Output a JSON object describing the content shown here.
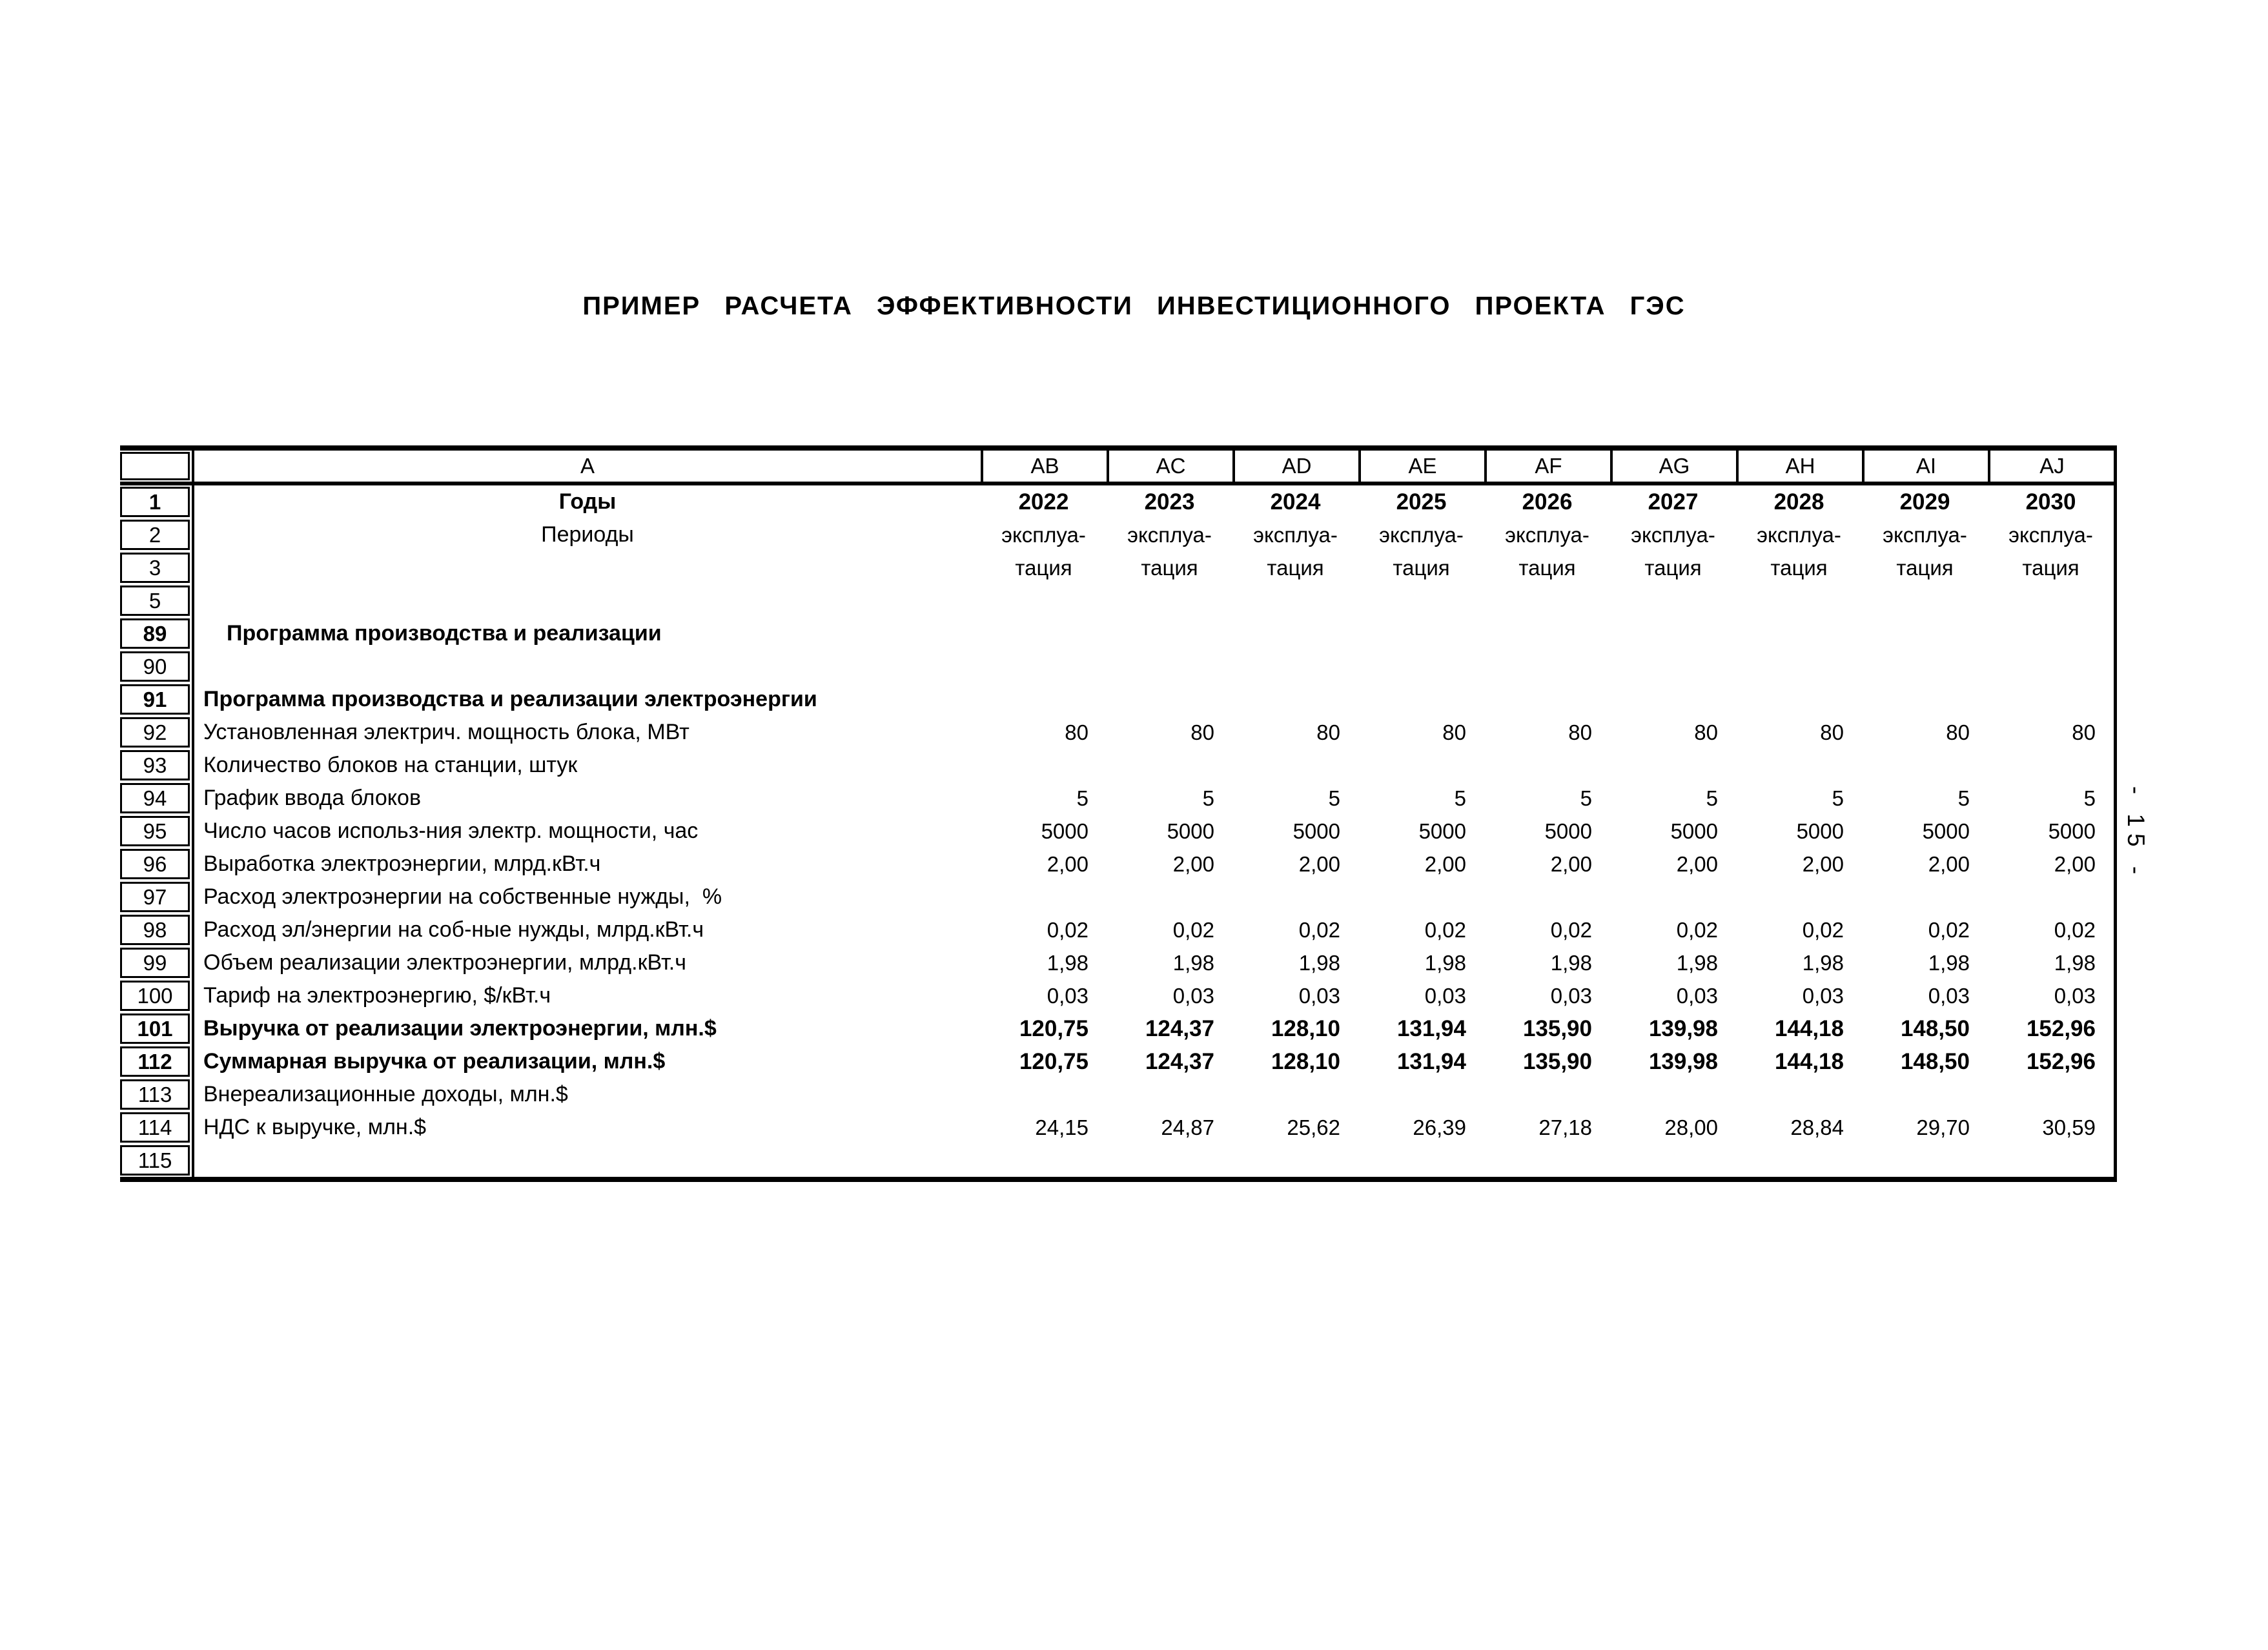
{
  "page": {
    "title": "ПРИМЕР РАСЧЕТА ЭФФЕКТИВНОСТИ ИНВЕСТИЦИОННОГО ПРОЕКТА ГЭС",
    "side_page_number": "- 15 -",
    "colors": {
      "ink": "#000000",
      "paper": "#ffffff"
    }
  },
  "table": {
    "column_letters": [
      "A",
      "AB",
      "AC",
      "AD",
      "AE",
      "AF",
      "AG",
      "AH",
      "AI",
      "AJ"
    ],
    "rows": [
      {
        "num": "1",
        "label": "Годы",
        "label_center": true,
        "bold": true,
        "vals_center": true,
        "vals": [
          "2022",
          "2023",
          "2024",
          "2025",
          "2026",
          "2027",
          "2028",
          "2029",
          "2030"
        ]
      },
      {
        "num": "2",
        "label": "Периоды",
        "label_center": true,
        "vals_center": true,
        "vals": [
          "эксплуа-",
          "эксплуа-",
          "эксплуа-",
          "эксплуа-",
          "эксплуа-",
          "эксплуа-",
          "эксплуа-",
          "эксплуа-",
          "эксплуа-"
        ]
      },
      {
        "num": "3",
        "label": "",
        "vals_center": true,
        "vals": [
          "тация",
          "тация",
          "тация",
          "тация",
          "тация",
          "тация",
          "тация",
          "тация",
          "тация"
        ]
      },
      {
        "num": "5",
        "label": "",
        "vals": []
      },
      {
        "num": "89",
        "label": "Программа производства и реализации",
        "bold": true,
        "indent": true,
        "vals": []
      },
      {
        "num": "90",
        "label": "",
        "vals": []
      },
      {
        "num": "91",
        "label": "Программа производства и реализации электроэнергии",
        "bold": true,
        "vals": []
      },
      {
        "num": "92",
        "label": "Установленная электрич. мощность блока, МВт",
        "vals": [
          "80",
          "80",
          "80",
          "80",
          "80",
          "80",
          "80",
          "80",
          "80"
        ]
      },
      {
        "num": "93",
        "label": "Количество блоков на станции, штук",
        "vals": []
      },
      {
        "num": "94",
        "label": "График ввода блоков",
        "vals": [
          "5",
          "5",
          "5",
          "5",
          "5",
          "5",
          "5",
          "5",
          "5"
        ]
      },
      {
        "num": "95",
        "label": "Число часов использ-ния электр. мощности, час",
        "vals": [
          "5000",
          "5000",
          "5000",
          "5000",
          "5000",
          "5000",
          "5000",
          "5000",
          "5000"
        ]
      },
      {
        "num": "96",
        "label": "Выработка электроэнергии, млрд.кВт.ч",
        "vals": [
          "2,00",
          "2,00",
          "2,00",
          "2,00",
          "2,00",
          "2,00",
          "2,00",
          "2,00",
          "2,00"
        ]
      },
      {
        "num": "97",
        "label": "Расход электроэнергии на собственные нужды,  %",
        "vals": []
      },
      {
        "num": "98",
        "label": "Расход эл/энергии на соб-ные нужды, млрд.кВт.ч",
        "vals": [
          "0,02",
          "0,02",
          "0,02",
          "0,02",
          "0,02",
          "0,02",
          "0,02",
          "0,02",
          "0,02"
        ]
      },
      {
        "num": "99",
        "label": "Объем реализации электроэнергии, млрд.кВт.ч",
        "vals": [
          "1,98",
          "1,98",
          "1,98",
          "1,98",
          "1,98",
          "1,98",
          "1,98",
          "1,98",
          "1,98"
        ]
      },
      {
        "num": "100",
        "label": "Тариф на электроэнергию, $/кВт.ч",
        "vals": [
          "0,03",
          "0,03",
          "0,03",
          "0,03",
          "0,03",
          "0,03",
          "0,03",
          "0,03",
          "0,03"
        ]
      },
      {
        "num": "101",
        "label": "Выручка от реализации электроэнергии, млн.$",
        "bold": true,
        "vals": [
          "120,75",
          "124,37",
          "128,10",
          "131,94",
          "135,90",
          "139,98",
          "144,18",
          "148,50",
          "152,96"
        ]
      },
      {
        "num": "112",
        "label": "Суммарная выручка от реализации, млн.$",
        "bold": true,
        "vals": [
          "120,75",
          "124,37",
          "128,10",
          "131,94",
          "135,90",
          "139,98",
          "144,18",
          "148,50",
          "152,96"
        ]
      },
      {
        "num": "113",
        "label": "Внереализационные доходы, млн.$",
        "vals": []
      },
      {
        "num": "114",
        "label": "НДС к выручке, млн.$",
        "vals": [
          "24,15",
          "24,87",
          "25,62",
          "26,39",
          "27,18",
          "28,00",
          "28,84",
          "29,70",
          "30,59"
        ]
      },
      {
        "num": "115",
        "label": "",
        "vals": []
      }
    ]
  }
}
